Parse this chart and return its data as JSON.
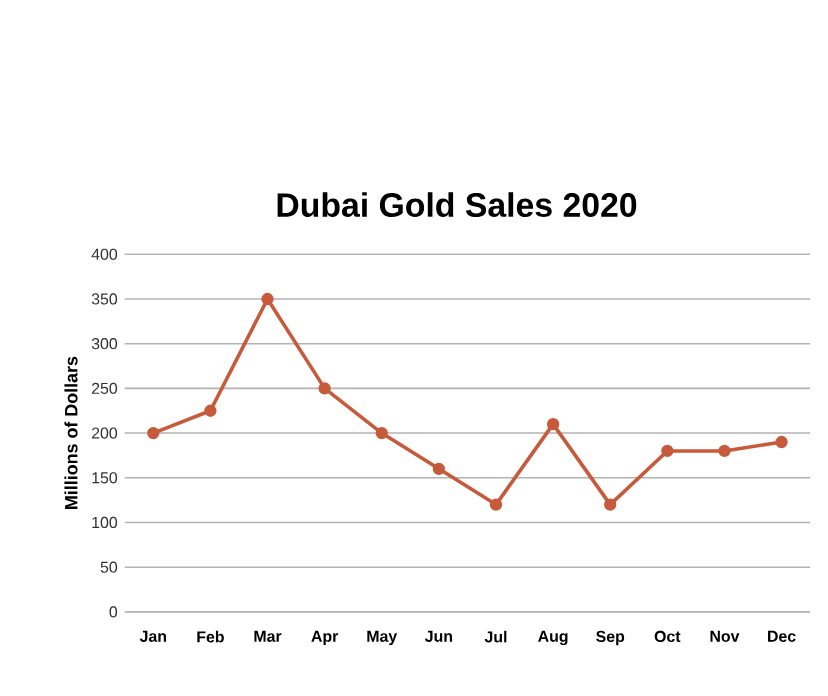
{
  "chart_data": {
    "type": "line",
    "title": "Dubai Gold Sales 2020",
    "ylabel": "Millions of Dollars",
    "categories": [
      "Jan",
      "Feb",
      "Mar",
      "Apr",
      "May",
      "Jun",
      "Jul",
      "Aug",
      "Sep",
      "Oct",
      "Nov",
      "Dec"
    ],
    "series": [
      {
        "color": "#c65a3a",
        "values": [
          200,
          225,
          350,
          250,
          200,
          160,
          120,
          210,
          120,
          180,
          180,
          190
        ]
      }
    ],
    "ylim": [
      0,
      400
    ],
    "yticks": [
      0,
      50,
      100,
      150,
      200,
      250,
      300,
      350,
      400
    ],
    "grid": "y",
    "marker": "circle",
    "line_style": "solid"
  }
}
